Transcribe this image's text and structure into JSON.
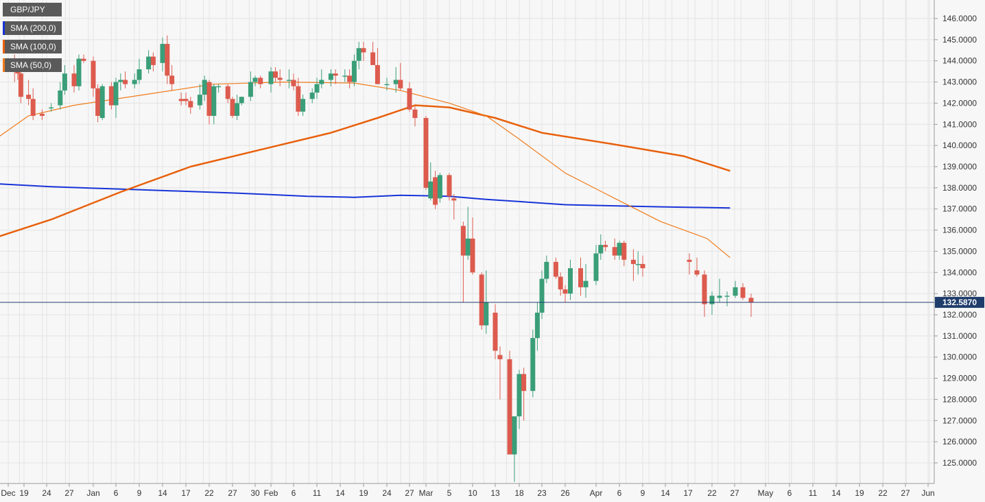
{
  "chart_data": {
    "type": "candlestick",
    "symbol": "GBP/JPY",
    "ylim": [
      124.1,
      146.6
    ],
    "yticks": [
      125,
      126,
      127,
      128,
      129,
      130,
      131,
      132,
      133,
      134,
      135,
      136,
      137,
      138,
      139,
      140,
      141,
      142,
      143,
      144,
      145,
      146
    ],
    "ytick_labels": [
      "125.0000",
      "126.0000",
      "127.0000",
      "128.0000",
      "129.0000",
      "130.0000",
      "131.0000",
      "132.0000",
      "133.0000",
      "134.0000",
      "135.0000",
      "136.0000",
      "137.0000",
      "138.0000",
      "139.0000",
      "140.0000",
      "141.0000",
      "142.0000",
      "143.0000",
      "144.0000",
      "145.0000",
      "146.0000"
    ],
    "xlim": [
      -6,
      163
    ],
    "xticks": [
      {
        "d": -1,
        "label": "Dec"
      },
      {
        "d": 4,
        "label": "19"
      },
      {
        "d": 9,
        "label": "24"
      },
      {
        "d": 14,
        "label": "27"
      },
      {
        "d": 19,
        "label": "Jan"
      },
      {
        "d": 24,
        "label": "6"
      },
      {
        "d": 29,
        "label": "9"
      },
      {
        "d": 34,
        "label": "14"
      },
      {
        "d": 39,
        "label": "17"
      },
      {
        "d": 44,
        "label": "22"
      },
      {
        "d": 49,
        "label": "27"
      },
      {
        "d": 54,
        "label": "30"
      },
      {
        "d": 57,
        "label": "Feb"
      },
      {
        "d": 62,
        "label": "6"
      },
      {
        "d": 67,
        "label": "11"
      },
      {
        "d": 72,
        "label": "14"
      },
      {
        "d": 77,
        "label": "19"
      },
      {
        "d": 82,
        "label": "24"
      },
      {
        "d": 87,
        "label": "27"
      },
      {
        "d": 90,
        "label": "Mar"
      },
      {
        "d": 95,
        "label": "5"
      },
      {
        "d": 100,
        "label": "10"
      },
      {
        "d": 105,
        "label": "13"
      },
      {
        "d": 110,
        "label": "18"
      },
      {
        "d": 115,
        "label": "23"
      },
      {
        "d": 120,
        "label": "26"
      },
      {
        "d": 126,
        "label": "Apr"
      },
      {
        "d": 131,
        "label": "6"
      },
      {
        "d": 136,
        "label": "9"
      },
      {
        "d": 141,
        "label": "14"
      },
      {
        "d": 146,
        "label": "17"
      },
      {
        "d": 151,
        "label": "22"
      },
      {
        "d": 156,
        "label": "27"
      },
      {
        "d": 162,
        "label": "May"
      },
      {
        "d": 167,
        "label": "6"
      },
      {
        "d": 172,
        "label": "11"
      },
      {
        "d": 177,
        "label": "14"
      },
      {
        "d": 182,
        "label": "19"
      },
      {
        "d": 187,
        "label": "22"
      },
      {
        "d": 192,
        "label": "27"
      },
      {
        "d": 197,
        "label": "Jun"
      }
    ],
    "candles": [
      {
        "d": -6,
        "o": 144.8,
        "h": 146.0,
        "l": 143.3,
        "c": 143.5
      },
      {
        "d": 1,
        "o": 144.0,
        "h": 144.3,
        "l": 143.0,
        "c": 143.6
      },
      {
        "d": 2,
        "o": 143.6,
        "h": 143.8,
        "l": 143.1,
        "c": 143.4
      },
      {
        "d": 3,
        "o": 143.4,
        "h": 143.7,
        "l": 142.0,
        "c": 142.3
      },
      {
        "d": 5,
        "o": 142.4,
        "h": 143.1,
        "l": 141.9,
        "c": 142.2
      },
      {
        "d": 6,
        "o": 142.2,
        "h": 142.7,
        "l": 141.2,
        "c": 141.4
      },
      {
        "d": 8,
        "o": 141.5,
        "h": 141.7,
        "l": 141.2,
        "c": 141.4
      },
      {
        "d": 10,
        "o": 141.8,
        "h": 142.0,
        "l": 141.6,
        "c": 141.8
      },
      {
        "d": 12,
        "o": 141.9,
        "h": 143.0,
        "l": 141.7,
        "c": 142.6
      },
      {
        "d": 13,
        "o": 142.6,
        "h": 143.8,
        "l": 142.4,
        "c": 143.4
      },
      {
        "d": 15,
        "o": 143.4,
        "h": 143.8,
        "l": 142.5,
        "c": 142.8
      },
      {
        "d": 16,
        "o": 142.8,
        "h": 144.3,
        "l": 142.6,
        "c": 144.1
      },
      {
        "d": 17,
        "o": 144.1,
        "h": 144.3,
        "l": 143.9,
        "c": 144.0
      },
      {
        "d": 19,
        "o": 144.0,
        "h": 144.2,
        "l": 142.3,
        "c": 142.7
      },
      {
        "d": 20,
        "o": 142.7,
        "h": 142.9,
        "l": 141.1,
        "c": 141.4
      },
      {
        "d": 21,
        "o": 141.3,
        "h": 142.9,
        "l": 141.2,
        "c": 142.8
      },
      {
        "d": 23,
        "o": 142.8,
        "h": 143.0,
        "l": 141.7,
        "c": 141.9
      },
      {
        "d": 24,
        "o": 141.9,
        "h": 143.2,
        "l": 141.3,
        "c": 143.0
      },
      {
        "d": 25,
        "o": 143.0,
        "h": 143.4,
        "l": 142.6,
        "c": 143.1
      },
      {
        "d": 26,
        "o": 143.1,
        "h": 143.5,
        "l": 142.7,
        "c": 142.9
      },
      {
        "d": 28,
        "o": 142.9,
        "h": 143.4,
        "l": 142.7,
        "c": 143.1
      },
      {
        "d": 29,
        "o": 143.1,
        "h": 144.1,
        "l": 142.9,
        "c": 143.6
      },
      {
        "d": 31,
        "o": 143.6,
        "h": 144.5,
        "l": 143.4,
        "c": 144.2
      },
      {
        "d": 32,
        "o": 144.2,
        "h": 144.4,
        "l": 143.5,
        "c": 143.8
      },
      {
        "d": 34,
        "o": 143.9,
        "h": 145.1,
        "l": 143.5,
        "c": 144.8
      },
      {
        "d": 35,
        "o": 144.8,
        "h": 145.2,
        "l": 142.9,
        "c": 143.3
      },
      {
        "d": 36,
        "o": 143.3,
        "h": 143.8,
        "l": 142.6,
        "c": 142.9
      },
      {
        "d": 38,
        "o": 142.2,
        "h": 142.5,
        "l": 141.9,
        "c": 142.1
      },
      {
        "d": 39,
        "o": 142.2,
        "h": 142.5,
        "l": 141.9,
        "c": 142.1
      },
      {
        "d": 40,
        "o": 142.1,
        "h": 142.3,
        "l": 141.5,
        "c": 141.8
      },
      {
        "d": 42,
        "o": 141.9,
        "h": 142.9,
        "l": 141.7,
        "c": 142.4
      },
      {
        "d": 43,
        "o": 142.4,
        "h": 143.3,
        "l": 142.1,
        "c": 143.1
      },
      {
        "d": 44,
        "o": 143.0,
        "h": 143.1,
        "l": 141.0,
        "c": 141.4
      },
      {
        "d": 45,
        "o": 141.4,
        "h": 142.9,
        "l": 141.0,
        "c": 142.8
      },
      {
        "d": 46,
        "o": 142.8,
        "h": 142.9,
        "l": 142.5,
        "c": 142.8
      },
      {
        "d": 48,
        "o": 142.8,
        "h": 142.9,
        "l": 142.0,
        "c": 142.2
      },
      {
        "d": 49,
        "o": 142.2,
        "h": 142.3,
        "l": 141.3,
        "c": 141.4
      },
      {
        "d": 50,
        "o": 141.4,
        "h": 142.4,
        "l": 141.2,
        "c": 142.0
      },
      {
        "d": 51,
        "o": 142.0,
        "h": 142.3,
        "l": 141.9,
        "c": 142.3
      },
      {
        "d": 53,
        "o": 142.3,
        "h": 143.5,
        "l": 142.1,
        "c": 143.0
      },
      {
        "d": 54,
        "o": 143.0,
        "h": 143.3,
        "l": 142.8,
        "c": 143.2
      },
      {
        "d": 55,
        "o": 143.2,
        "h": 143.3,
        "l": 142.7,
        "c": 142.9
      },
      {
        "d": 57,
        "o": 142.9,
        "h": 143.7,
        "l": 142.5,
        "c": 143.5
      },
      {
        "d": 58,
        "o": 143.5,
        "h": 143.7,
        "l": 143.0,
        "c": 143.2
      },
      {
        "d": 59,
        "o": 143.2,
        "h": 143.6,
        "l": 142.8,
        "c": 143.1
      }
    ],
    "candles2": [
      {
        "d": 61,
        "o": 143.1,
        "h": 143.6,
        "l": 142.7,
        "c": 143.1
      },
      {
        "d": 62,
        "o": 143.1,
        "h": 143.4,
        "l": 142.6,
        "c": 142.8
      },
      {
        "d": 63,
        "o": 142.8,
        "h": 143.2,
        "l": 141.4,
        "c": 141.6
      },
      {
        "d": 64,
        "o": 141.6,
        "h": 142.4,
        "l": 141.4,
        "c": 142.2
      },
      {
        "d": 66,
        "o": 142.2,
        "h": 142.7,
        "l": 142.0,
        "c": 142.5
      },
      {
        "d": 67,
        "o": 142.5,
        "h": 143.2,
        "l": 142.2,
        "c": 142.9
      },
      {
        "d": 68,
        "o": 142.9,
        "h": 143.6,
        "l": 142.7,
        "c": 143.1
      },
      {
        "d": 70,
        "o": 143.1,
        "h": 143.6,
        "l": 142.8,
        "c": 143.4
      },
      {
        "d": 71,
        "o": 143.4,
        "h": 143.6,
        "l": 142.9,
        "c": 143.3
      },
      {
        "d": 73,
        "o": 143.3,
        "h": 143.6,
        "l": 143.0,
        "c": 143.3
      },
      {
        "d": 74,
        "o": 143.3,
        "h": 143.6,
        "l": 142.7,
        "c": 143.0
      },
      {
        "d": 75,
        "o": 143.0,
        "h": 144.3,
        "l": 142.8,
        "c": 144.0
      },
      {
        "d": 76,
        "o": 144.0,
        "h": 144.9,
        "l": 143.6,
        "c": 144.6
      },
      {
        "d": 77,
        "o": 144.6,
        "h": 144.9,
        "l": 144.0,
        "c": 144.4
      },
      {
        "d": 79,
        "o": 144.4,
        "h": 144.9,
        "l": 143.8,
        "c": 143.8
      }
    ],
    "series": [
      {
        "name": "SMA (200,0)",
        "color": "#1733d8",
        "width": 2,
        "points": [
          [
            -6,
            138.2
          ],
          [
            10,
            138.05
          ],
          [
            30,
            137.9
          ],
          [
            50,
            137.75
          ],
          [
            65,
            137.6
          ],
          [
            75,
            137.55
          ],
          [
            85,
            137.65
          ],
          [
            95,
            137.6
          ],
          [
            103,
            137.45
          ],
          [
            110,
            137.35
          ],
          [
            120,
            137.2
          ],
          [
            140,
            137.1
          ],
          [
            155,
            137.05
          ]
        ]
      },
      {
        "name": "SMA (100,0)",
        "color": "#e8600c",
        "width": 2.5,
        "points": [
          [
            -6,
            135.6
          ],
          [
            10,
            136.5
          ],
          [
            25,
            137.8
          ],
          [
            40,
            139.0
          ],
          [
            55,
            139.8
          ],
          [
            70,
            140.6
          ],
          [
            80,
            141.3
          ],
          [
            88,
            141.9
          ],
          [
            95,
            141.8
          ],
          [
            105,
            141.3
          ],
          [
            115,
            140.6
          ],
          [
            130,
            140.05
          ],
          [
            145,
            139.5
          ],
          [
            155,
            138.8
          ]
        ]
      },
      {
        "name": "SMA (50,0)",
        "color": "#f07a1a",
        "width": 1.2,
        "points": [
          [
            -6,
            140.2
          ],
          [
            5,
            141.4
          ],
          [
            15,
            141.9
          ],
          [
            30,
            142.4
          ],
          [
            45,
            142.9
          ],
          [
            60,
            143.0
          ],
          [
            75,
            142.95
          ],
          [
            85,
            142.6
          ],
          [
            95,
            142.0
          ],
          [
            103,
            141.4
          ],
          [
            110,
            140.3
          ],
          [
            120,
            138.7
          ],
          [
            130,
            137.5
          ],
          [
            140,
            136.4
          ],
          [
            150,
            135.6
          ],
          [
            155,
            134.7
          ]
        ]
      }
    ],
    "current_price": 132.587,
    "current_price_label": "132.5870"
  },
  "legend": {
    "symbol": "GBP/JPY",
    "sma200": "SMA (200,0)",
    "sma100": "SMA (100,0)",
    "sma50": "SMA (50,0)"
  }
}
